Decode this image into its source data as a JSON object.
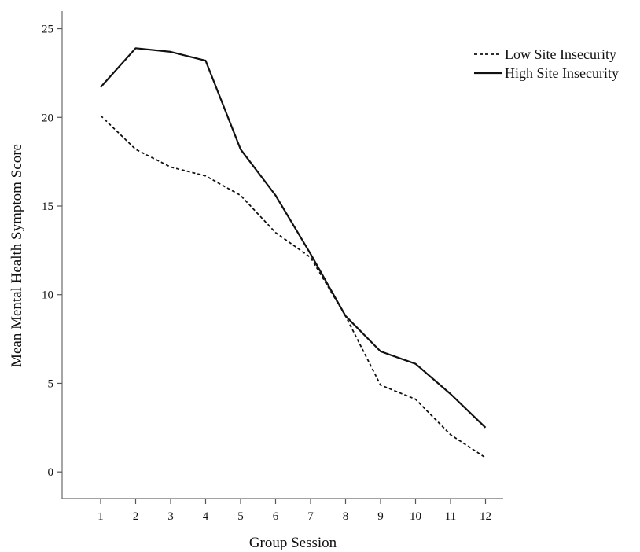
{
  "chart_data": {
    "type": "line",
    "title": "",
    "xlabel": "Group Session",
    "ylabel": "Mean Mental Health Symptom Score",
    "x": [
      "1",
      "2",
      "3",
      "4",
      "5",
      "6",
      "7",
      "8",
      "9",
      "10",
      "11",
      "12"
    ],
    "ylim": [
      -1.5,
      26
    ],
    "yticks": [
      "0",
      "5",
      "10",
      "15",
      "20",
      "25"
    ],
    "grid": false,
    "legend": {
      "placement": "top-right"
    },
    "line_color": "#111111",
    "series": [
      {
        "name": "Low Site Insecurity",
        "style": "dashed",
        "values": [
          20.1,
          18.2,
          17.2,
          16.7,
          15.6,
          13.5,
          12.1,
          8.8,
          4.9,
          4.1,
          2.1,
          0.8
        ]
      },
      {
        "name": "High Site Insecurity",
        "style": "solid",
        "values": [
          21.7,
          23.9,
          23.7,
          23.2,
          18.2,
          15.6,
          12.3,
          8.8,
          6.8,
          6.1,
          4.4,
          2.5
        ]
      }
    ]
  }
}
